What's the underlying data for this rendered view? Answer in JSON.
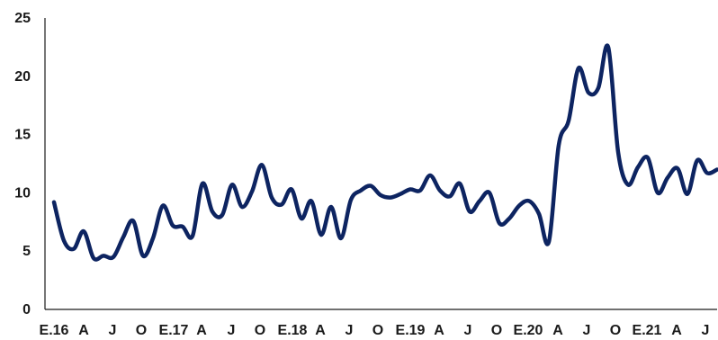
{
  "chart_data": {
    "type": "line",
    "title": "",
    "xlabel": "",
    "ylabel": "",
    "ylim": [
      0,
      25
    ],
    "yticks": [
      0,
      5,
      10,
      15,
      20,
      25
    ],
    "x_tick_labels": [
      "E.16",
      "A",
      "J",
      "O",
      "E.17",
      "A",
      "J",
      "O",
      "E.18",
      "A",
      "J",
      "O",
      "E.19",
      "A",
      "J",
      "O",
      "E.20",
      "A",
      "J",
      "O",
      "E.21",
      "A",
      "J"
    ],
    "grid": false,
    "legend": "none",
    "colors": {
      "line": "#0d2461",
      "axis": "#1a1a1a",
      "text": "#1a1a1a"
    },
    "series": [
      {
        "values": [
          9.2,
          5.9,
          5.2,
          6.7,
          4.4,
          4.6,
          4.5,
          6.2,
          7.6,
          4.6,
          6.1,
          8.9,
          7.2,
          7.1,
          6.3,
          10.8,
          8.4,
          8.1,
          10.7,
          8.8,
          10.1,
          12.4,
          9.6,
          9.0,
          10.3,
          7.8,
          9.3,
          6.4,
          8.8,
          6.1,
          9.4,
          10.2,
          10.6,
          9.8,
          9.6,
          9.9,
          10.3,
          10.2,
          11.5,
          10.2,
          9.7,
          10.8,
          8.4,
          9.3,
          10.0,
          7.4,
          7.8,
          8.9,
          9.3,
          8.2,
          5.8,
          14.1,
          16.2,
          20.7,
          18.6,
          19.0,
          22.5,
          13.5,
          10.7,
          12.2,
          13.0,
          10.0,
          11.3,
          12.1,
          9.9,
          12.8,
          11.7,
          12.0
        ]
      }
    ]
  }
}
